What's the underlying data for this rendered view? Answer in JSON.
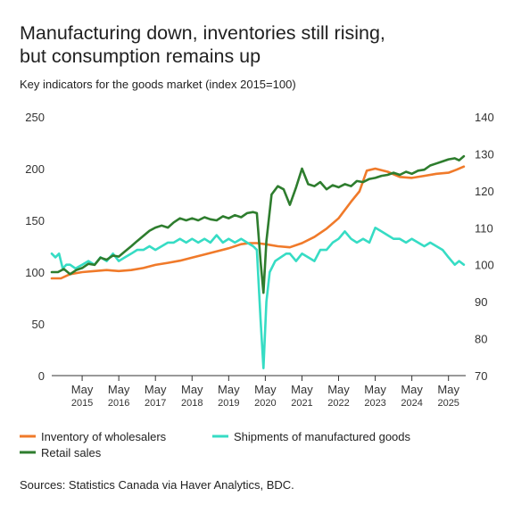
{
  "header": {
    "title_line1": "Manufacturing down, inventories still rising,",
    "title_line2": "but consumption remains up",
    "subtitle": "Key indicators for the goods market (index 2015=100)"
  },
  "footer": {
    "source": "Sources: Statistics Canada via Haver Analytics, BDC."
  },
  "chart_data": {
    "type": "line",
    "x_ticks": [
      {
        "x": 2015.33,
        "label_month": "May",
        "label_year": "2015"
      },
      {
        "x": 2016.33,
        "label_month": "May",
        "label_year": "2016"
      },
      {
        "x": 2017.33,
        "label_month": "May",
        "label_year": "2017"
      },
      {
        "x": 2018.33,
        "label_month": "May",
        "label_year": "2018"
      },
      {
        "x": 2019.33,
        "label_month": "May",
        "label_year": "2019"
      },
      {
        "x": 2020.33,
        "label_month": "May",
        "label_year": "2020"
      },
      {
        "x": 2021.33,
        "label_month": "May",
        "label_year": "2021"
      },
      {
        "x": 2022.33,
        "label_month": "May",
        "label_year": "2022"
      },
      {
        "x": 2023.33,
        "label_month": "May",
        "label_year": "2023"
      },
      {
        "x": 2024.33,
        "label_month": "May",
        "label_year": "2024"
      },
      {
        "x": 2025.33,
        "label_month": "May",
        "label_year": "2025"
      }
    ],
    "xlim": [
      2014.5,
      2025.8
    ],
    "y_left": {
      "min": 0,
      "max": 250,
      "ticks": [
        0,
        50,
        100,
        150,
        200,
        250
      ]
    },
    "y_right": {
      "min": 70,
      "max": 140,
      "ticks": [
        70,
        80,
        90,
        100,
        110,
        120,
        130,
        140
      ]
    },
    "grid": false,
    "legend_position": "bottom",
    "series": [
      {
        "name": "Inventory of wholesalers",
        "color": "#f07a2a",
        "axis": "left",
        "points": [
          [
            2014.5,
            94
          ],
          [
            2014.75,
            94
          ],
          [
            2015.0,
            98
          ],
          [
            2015.33,
            100
          ],
          [
            2015.67,
            101
          ],
          [
            2016.0,
            102
          ],
          [
            2016.33,
            101
          ],
          [
            2016.67,
            102
          ],
          [
            2017.0,
            104
          ],
          [
            2017.33,
            107
          ],
          [
            2017.67,
            109
          ],
          [
            2018.0,
            111
          ],
          [
            2018.33,
            114
          ],
          [
            2018.67,
            117
          ],
          [
            2019.0,
            120
          ],
          [
            2019.33,
            123
          ],
          [
            2019.67,
            127
          ],
          [
            2019.9,
            128
          ],
          [
            2020.1,
            128
          ],
          [
            2020.33,
            127
          ],
          [
            2020.67,
            125
          ],
          [
            2021.0,
            124
          ],
          [
            2021.33,
            128
          ],
          [
            2021.67,
            134
          ],
          [
            2022.0,
            142
          ],
          [
            2022.33,
            152
          ],
          [
            2022.67,
            168
          ],
          [
            2022.9,
            178
          ],
          [
            2023.1,
            198
          ],
          [
            2023.33,
            200
          ],
          [
            2023.67,
            197
          ],
          [
            2024.0,
            192
          ],
          [
            2024.33,
            191
          ],
          [
            2024.67,
            193
          ],
          [
            2025.0,
            195
          ],
          [
            2025.33,
            196
          ],
          [
            2025.55,
            199
          ],
          [
            2025.75,
            202
          ]
        ]
      },
      {
        "name": "Shipments of manufactured goods",
        "color": "#36dcc4",
        "axis": "right",
        "points": [
          [
            2014.5,
            103
          ],
          [
            2014.6,
            102
          ],
          [
            2014.7,
            103
          ],
          [
            2014.8,
            99
          ],
          [
            2014.9,
            100
          ],
          [
            2015.0,
            100
          ],
          [
            2015.15,
            99
          ],
          [
            2015.33,
            100
          ],
          [
            2015.5,
            101
          ],
          [
            2015.67,
            100
          ],
          [
            2015.83,
            102
          ],
          [
            2016.0,
            101
          ],
          [
            2016.17,
            103
          ],
          [
            2016.33,
            101
          ],
          [
            2016.5,
            102
          ],
          [
            2016.67,
            103
          ],
          [
            2016.83,
            104
          ],
          [
            2017.0,
            104
          ],
          [
            2017.17,
            105
          ],
          [
            2017.33,
            104
          ],
          [
            2017.5,
            105
          ],
          [
            2017.67,
            106
          ],
          [
            2017.83,
            106
          ],
          [
            2018.0,
            107
          ],
          [
            2018.17,
            106
          ],
          [
            2018.33,
            107
          ],
          [
            2018.5,
            106
          ],
          [
            2018.67,
            107
          ],
          [
            2018.83,
            106
          ],
          [
            2019.0,
            108
          ],
          [
            2019.17,
            106
          ],
          [
            2019.33,
            107
          ],
          [
            2019.5,
            106
          ],
          [
            2019.67,
            107
          ],
          [
            2019.83,
            106
          ],
          [
            2020.0,
            105
          ],
          [
            2020.1,
            104
          ],
          [
            2020.2,
            85
          ],
          [
            2020.28,
            72
          ],
          [
            2020.36,
            90
          ],
          [
            2020.45,
            98
          ],
          [
            2020.6,
            101
          ],
          [
            2020.75,
            102
          ],
          [
            2020.9,
            103
          ],
          [
            2021.0,
            103
          ],
          [
            2021.17,
            101
          ],
          [
            2021.33,
            103
          ],
          [
            2021.5,
            102
          ],
          [
            2021.67,
            101
          ],
          [
            2021.83,
            104
          ],
          [
            2022.0,
            104
          ],
          [
            2022.17,
            106
          ],
          [
            2022.33,
            107
          ],
          [
            2022.5,
            109
          ],
          [
            2022.67,
            107
          ],
          [
            2022.83,
            106
          ],
          [
            2023.0,
            107
          ],
          [
            2023.17,
            106
          ],
          [
            2023.33,
            110
          ],
          [
            2023.5,
            109
          ],
          [
            2023.67,
            108
          ],
          [
            2023.83,
            107
          ],
          [
            2024.0,
            107
          ],
          [
            2024.17,
            106
          ],
          [
            2024.33,
            107
          ],
          [
            2024.5,
            106
          ],
          [
            2024.67,
            105
          ],
          [
            2024.83,
            106
          ],
          [
            2025.0,
            105
          ],
          [
            2025.17,
            104
          ],
          [
            2025.33,
            102
          ],
          [
            2025.5,
            100
          ],
          [
            2025.62,
            101
          ],
          [
            2025.75,
            100
          ]
        ]
      },
      {
        "name": "Retail sales",
        "color": "#2e7d2e",
        "axis": "left",
        "points": [
          [
            2014.5,
            100
          ],
          [
            2014.67,
            100
          ],
          [
            2014.83,
            103
          ],
          [
            2015.0,
            98
          ],
          [
            2015.17,
            102
          ],
          [
            2015.33,
            104
          ],
          [
            2015.5,
            108
          ],
          [
            2015.67,
            107
          ],
          [
            2015.83,
            114
          ],
          [
            2016.0,
            112
          ],
          [
            2016.17,
            116
          ],
          [
            2016.33,
            115
          ],
          [
            2016.5,
            120
          ],
          [
            2016.67,
            125
          ],
          [
            2016.83,
            130
          ],
          [
            2017.0,
            135
          ],
          [
            2017.17,
            140
          ],
          [
            2017.33,
            143
          ],
          [
            2017.5,
            145
          ],
          [
            2017.67,
            143
          ],
          [
            2017.83,
            148
          ],
          [
            2018.0,
            152
          ],
          [
            2018.17,
            150
          ],
          [
            2018.33,
            152
          ],
          [
            2018.5,
            150
          ],
          [
            2018.67,
            153
          ],
          [
            2018.83,
            151
          ],
          [
            2019.0,
            150
          ],
          [
            2019.17,
            154
          ],
          [
            2019.33,
            152
          ],
          [
            2019.5,
            155
          ],
          [
            2019.67,
            153
          ],
          [
            2019.83,
            157
          ],
          [
            2020.0,
            158
          ],
          [
            2020.1,
            157
          ],
          [
            2020.2,
            110
          ],
          [
            2020.28,
            80
          ],
          [
            2020.36,
            130
          ],
          [
            2020.5,
            175
          ],
          [
            2020.67,
            183
          ],
          [
            2020.83,
            180
          ],
          [
            2021.0,
            165
          ],
          [
            2021.17,
            182
          ],
          [
            2021.33,
            200
          ],
          [
            2021.5,
            185
          ],
          [
            2021.67,
            183
          ],
          [
            2021.83,
            187
          ],
          [
            2022.0,
            180
          ],
          [
            2022.17,
            184
          ],
          [
            2022.33,
            182
          ],
          [
            2022.5,
            185
          ],
          [
            2022.67,
            183
          ],
          [
            2022.83,
            188
          ],
          [
            2023.0,
            187
          ],
          [
            2023.17,
            190
          ],
          [
            2023.33,
            191
          ],
          [
            2023.5,
            193
          ],
          [
            2023.67,
            194
          ],
          [
            2023.83,
            196
          ],
          [
            2024.0,
            194
          ],
          [
            2024.17,
            197
          ],
          [
            2024.33,
            195
          ],
          [
            2024.5,
            198
          ],
          [
            2024.67,
            199
          ],
          [
            2024.83,
            203
          ],
          [
            2025.0,
            205
          ],
          [
            2025.17,
            207
          ],
          [
            2025.33,
            209
          ],
          [
            2025.5,
            210
          ],
          [
            2025.62,
            208
          ],
          [
            2025.75,
            212
          ]
        ]
      }
    ]
  }
}
